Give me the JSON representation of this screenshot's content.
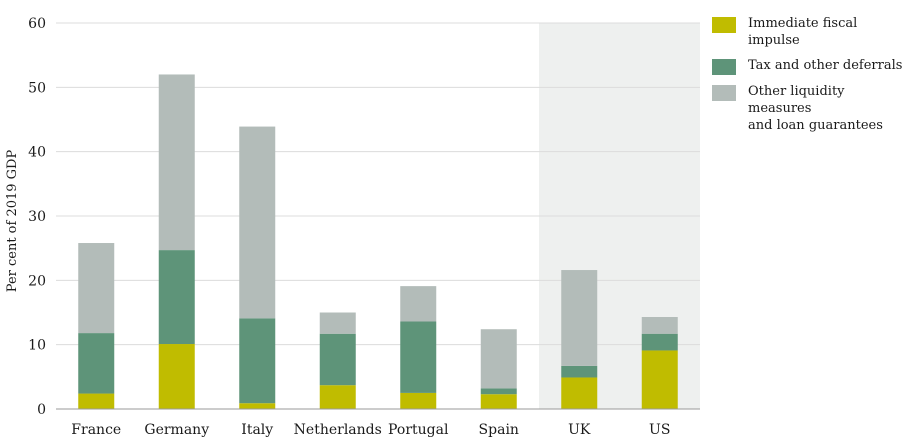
{
  "chart_data": {
    "type": "bar",
    "stacked": true,
    "categories": [
      "France",
      "Germany",
      "Italy",
      "Netherlands",
      "Portugal",
      "Spain",
      "UK",
      "US"
    ],
    "series": [
      {
        "name": "Immediate fiscal impulse",
        "color": "#c0bc00",
        "values": [
          2.4,
          10.1,
          0.9,
          3.7,
          2.5,
          2.3,
          4.9,
          9.1
        ]
      },
      {
        "name": "Tax and other deferrals",
        "color": "#5e9479",
        "values": [
          9.4,
          14.6,
          13.2,
          8.0,
          11.1,
          0.9,
          1.8,
          2.6
        ]
      },
      {
        "name": "Other liquidity measures and loan guarantees",
        "color": "#b3bcb9",
        "values": [
          14.0,
          27.3,
          29.8,
          3.3,
          5.5,
          9.2,
          14.9,
          2.6
        ]
      }
    ],
    "ylabel": "Per cent of 2019 GDP",
    "ylim": [
      0,
      60
    ],
    "yticks": [
      0,
      10,
      20,
      30,
      40,
      50,
      60
    ],
    "grid": true,
    "highlight_categories": [
      "UK",
      "US"
    ],
    "highlight_color": "#eef0ef",
    "legend_position": "top-right"
  },
  "legend": {
    "items": [
      {
        "lines": [
          "Immediate fiscal impulse"
        ],
        "color": "#c0bc00"
      },
      {
        "lines": [
          "Tax and other deferrals"
        ],
        "color": "#5e9479"
      },
      {
        "lines": [
          "Other liquidity measures",
          "and loan guarantees"
        ],
        "color": "#b3bcb9"
      }
    ]
  }
}
